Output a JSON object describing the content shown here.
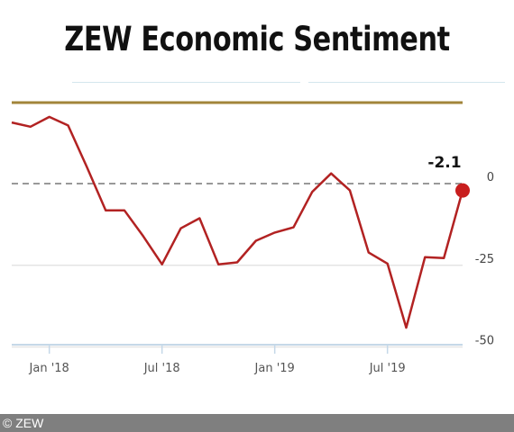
{
  "title": "ZEW Economic Sentiment",
  "footer": "© ZEW",
  "chart_data": {
    "type": "line",
    "x": [
      "2017-11",
      "2017-12",
      "2018-01",
      "2018-02",
      "2018-03",
      "2018-04",
      "2018-05",
      "2018-06",
      "2018-07",
      "2018-08",
      "2018-09",
      "2018-10",
      "2018-11",
      "2018-12",
      "2019-01",
      "2019-02",
      "2019-03",
      "2019-04",
      "2019-05",
      "2019-06",
      "2019-07",
      "2019-08",
      "2019-09",
      "2019-10",
      "2019-11"
    ],
    "values": [
      18.7,
      17.4,
      20.4,
      17.8,
      5.1,
      -8.2,
      -8.2,
      -16.1,
      -24.7,
      -13.7,
      -10.6,
      -24.7,
      -24.1,
      -17.5,
      -15.0,
      -13.4,
      -2.5,
      3.1,
      -2.1,
      -21.1,
      -24.5,
      -44.1,
      -22.5,
      -22.8,
      -2.1
    ],
    "highlight_label": "-2.1",
    "yticks": [
      0,
      -25,
      -50
    ],
    "ytick_labels": [
      "0",
      "-25",
      "-50"
    ],
    "xtick_labels": [
      "Jan '18",
      "Jul '18",
      "Jan '19",
      "Jul '19"
    ],
    "xtick_positions": [
      "2018-01",
      "2018-07",
      "2019-01",
      "2019-07"
    ],
    "reference_lines": [
      {
        "value": 0,
        "style": "dashed"
      }
    ],
    "top_band": "olive",
    "ylim": [
      -50,
      25
    ],
    "colors": {
      "line": "#b22222",
      "marker": "#c81e1e",
      "zero": "#999999",
      "top_band": "#a2853a",
      "grid": "#e4e4e4",
      "axis": "#c5d8e8"
    },
    "grid": true
  }
}
